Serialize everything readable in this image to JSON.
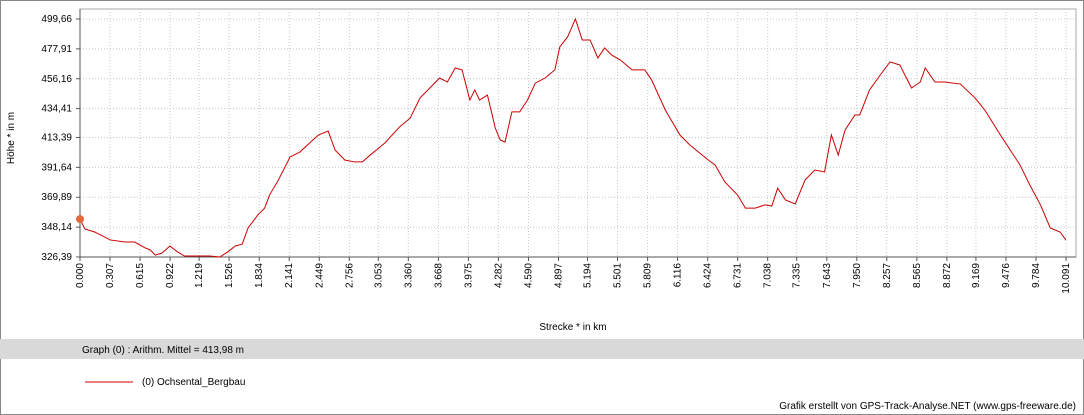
{
  "chart_data": {
    "type": "line",
    "y_label": "Höhe *  in  m",
    "x_label": "Strecke *  in  km",
    "summary": "Graph (0) :   Arithm. Mittel = 413,98 m",
    "credit": "Grafik erstellt von GPS-Track-Analyse.NET (www.gps-freeware.de)",
    "grid": true,
    "xlim": [
      0,
      10.091
    ],
    "ylim": [
      326.39,
      499.66
    ],
    "xticks": [
      {
        "value": 0,
        "label": "0.000"
      },
      {
        "value": 0.307,
        "label": "0.307"
      },
      {
        "value": 0.615,
        "label": "0.615"
      },
      {
        "value": 0.922,
        "label": "0.922"
      },
      {
        "value": 1.219,
        "label": "1.219"
      },
      {
        "value": 1.526,
        "label": "1.526"
      },
      {
        "value": 1.834,
        "label": "1.834"
      },
      {
        "value": 2.141,
        "label": "2.141"
      },
      {
        "value": 2.449,
        "label": "2.449"
      },
      {
        "value": 2.756,
        "label": "2.756"
      },
      {
        "value": 3.053,
        "label": "3.053"
      },
      {
        "value": 3.36,
        "label": "3.360"
      },
      {
        "value": 3.668,
        "label": "3.668"
      },
      {
        "value": 3.975,
        "label": "3.975"
      },
      {
        "value": 4.282,
        "label": "4.282"
      },
      {
        "value": 4.59,
        "label": "4.590"
      },
      {
        "value": 4.897,
        "label": "4.897"
      },
      {
        "value": 5.194,
        "label": "5.194"
      },
      {
        "value": 5.501,
        "label": "5.501"
      },
      {
        "value": 5.809,
        "label": "5.809"
      },
      {
        "value": 6.116,
        "label": "6.116"
      },
      {
        "value": 6.424,
        "label": "6.424"
      },
      {
        "value": 6.731,
        "label": "6.731"
      },
      {
        "value": 7.038,
        "label": "7.038"
      },
      {
        "value": 7.335,
        "label": "7.335"
      },
      {
        "value": 7.643,
        "label": "7.643"
      },
      {
        "value": 7.95,
        "label": "7.950"
      },
      {
        "value": 8.257,
        "label": "8.257"
      },
      {
        "value": 8.565,
        "label": "8.565"
      },
      {
        "value": 8.872,
        "label": "8.872"
      },
      {
        "value": 9.169,
        "label": "9.169"
      },
      {
        "value": 9.476,
        "label": "9.476"
      },
      {
        "value": 9.784,
        "label": "9.784"
      },
      {
        "value": 10.091,
        "label": "10.091"
      }
    ],
    "yticks": [
      {
        "value": 326.39,
        "label": "326,39"
      },
      {
        "value": 348.14,
        "label": "348,14"
      },
      {
        "value": 369.89,
        "label": "369,89"
      },
      {
        "value": 391.64,
        "label": "391,64"
      },
      {
        "value": 413.39,
        "label": "413,39"
      },
      {
        "value": 434.41,
        "label": "434,41"
      },
      {
        "value": 456.16,
        "label": "456,16"
      },
      {
        "value": 477.91,
        "label": "477,91"
      },
      {
        "value": 499.66,
        "label": "499,66"
      }
    ],
    "x": [
      0,
      0.05,
      0.15,
      0.31,
      0.46,
      0.56,
      0.67,
      0.72,
      0.77,
      0.84,
      0.92,
      1.0,
      1.07,
      1.18,
      1.33,
      1.43,
      1.51,
      1.59,
      1.66,
      1.72,
      1.82,
      1.89,
      1.94,
      2.03,
      2.15,
      2.25,
      2.35,
      2.44,
      2.54,
      2.61,
      2.71,
      2.81,
      2.89,
      2.97,
      3.12,
      3.27,
      3.38,
      3.48,
      3.58,
      3.68,
      3.76,
      3.84,
      3.91,
      3.99,
      4.04,
      4.09,
      4.17,
      4.25,
      4.3,
      4.35,
      4.42,
      4.5,
      4.58,
      4.66,
      4.76,
      4.86,
      4.91,
      4.99,
      5.07,
      5.14,
      5.22,
      5.3,
      5.37,
      5.44,
      5.53,
      5.65,
      5.78,
      5.85,
      5.99,
      6.14,
      6.24,
      6.43,
      6.5,
      6.6,
      6.73,
      6.81,
      6.91,
      7.01,
      7.08,
      7.14,
      7.22,
      7.32,
      7.42,
      7.52,
      7.62,
      7.69,
      7.76,
      7.83,
      7.93,
      7.98,
      8.08,
      8.19,
      8.29,
      8.39,
      8.51,
      8.6,
      8.65,
      8.75,
      8.85,
      9.01,
      9.16,
      9.26,
      9.42,
      9.52,
      9.62,
      9.72,
      9.83,
      9.93,
      10.03,
      10.09
    ],
    "series": [
      {
        "name": "(0) Ochsental_Bergbau",
        "color": "#cc0000",
        "marker_color": "#e8683a",
        "values": [
          354,
          346.8,
          344.6,
          338.8,
          337.3,
          337.3,
          332.9,
          331.5,
          327.8,
          329.3,
          334.4,
          330,
          327.1,
          327.1,
          327.1,
          326.4,
          330,
          334.4,
          335.8,
          347.5,
          357,
          362,
          371.5,
          382.4,
          399.2,
          402.8,
          409.4,
          415.2,
          418.1,
          404.3,
          397,
          395.6,
          395.6,
          400.6,
          409.4,
          421,
          427.6,
          442.2,
          449.4,
          456.7,
          453.8,
          464,
          462.6,
          440.7,
          448,
          440.7,
          444.3,
          420.3,
          411.6,
          410.1,
          432,
          432,
          440.7,
          453,
          456.7,
          462.6,
          479.3,
          486.6,
          499.7,
          484.4,
          484.4,
          471.3,
          478.6,
          473.5,
          469.8,
          462.6,
          462.6,
          455.3,
          433.4,
          415.2,
          408,
          397,
          393.4,
          381,
          371.5,
          362,
          362,
          364.3,
          363.5,
          376.5,
          367.9,
          365,
          382.4,
          389.7,
          388.3,
          415.2,
          400.6,
          418.8,
          429.8,
          429.8,
          448,
          458.9,
          468.4,
          466.2,
          449.4,
          453.8,
          464,
          453.8,
          453.8,
          452.3,
          442.2,
          433.4,
          415.2,
          404.3,
          393.4,
          378.9,
          364.3,
          347.5,
          344.6,
          338.8
        ]
      }
    ]
  }
}
